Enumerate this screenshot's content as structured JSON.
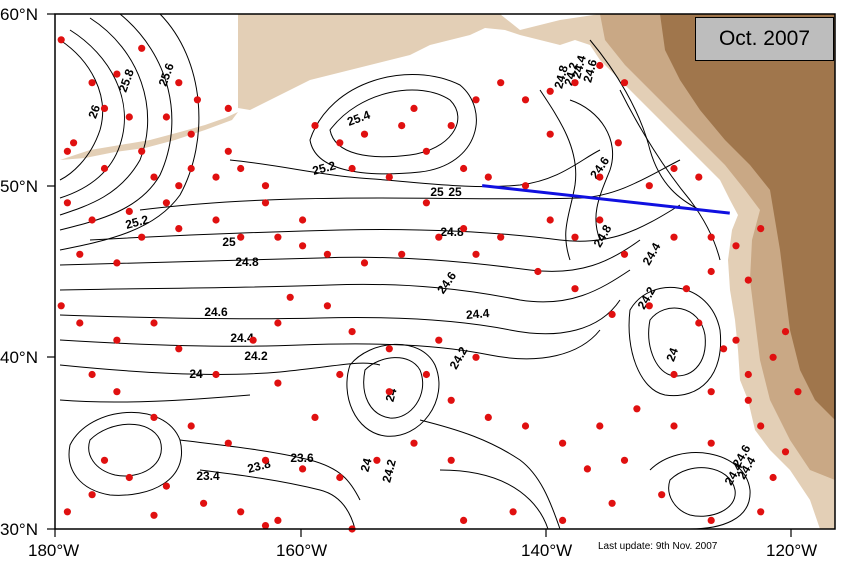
{
  "date_label": "Oct. 2007",
  "update_note": "Last update: 9th Nov. 2007",
  "colors": {
    "land_light": "#e3cfb6",
    "land_mid": "#c9a885",
    "land_dark": "#a0764c",
    "float": "#e01010",
    "section_line": "#1010e0",
    "contour": "#000000"
  },
  "axes": {
    "x_ticks": [
      "180°W",
      "160°W",
      "140°W",
      "120°W"
    ],
    "y_ticks": [
      "30°N",
      "40°N",
      "50°N",
      "60°N"
    ],
    "lon_range": [
      -180,
      -117
    ],
    "lat_range": [
      30,
      60
    ]
  },
  "contour_labels": [
    "26",
    "25.8",
    "25.6",
    "25.4",
    "25.2",
    "25.2",
    "25",
    "25",
    "24.8",
    "24.8",
    "24.8",
    "24.6",
    "24.6",
    "24.6",
    "24.4",
    "24.4",
    "24.4",
    "24.2",
    "24.2",
    "24.2",
    "24.2",
    "24",
    "24",
    "24",
    "24",
    "23.8",
    "23.6",
    "23.4",
    "24.2",
    "24.4",
    "24.6",
    "24.4",
    "24.4",
    "24.8",
    "25",
    "24.6"
  ],
  "section_line": {
    "from": [
      -145.5,
      50.0
    ],
    "to": [
      -125.5,
      48.4
    ]
  },
  "floats": [
    [
      -179.5,
      58.5
    ],
    [
      -175,
      56.5
    ],
    [
      -173,
      58
    ],
    [
      -170,
      56
    ],
    [
      -168.5,
      55
    ],
    [
      -166,
      54.5
    ],
    [
      -169,
      53
    ],
    [
      -176,
      54.5
    ],
    [
      -174,
      54
    ],
    [
      -178.5,
      52.5
    ],
    [
      -179,
      52
    ],
    [
      -176,
      51
    ],
    [
      -172,
      50.5
    ],
    [
      -170,
      50
    ],
    [
      -167,
      50.5
    ],
    [
      -165,
      51
    ],
    [
      -163,
      50
    ],
    [
      -171,
      49
    ],
    [
      -174,
      48.5
    ],
    [
      -177,
      48
    ],
    [
      -179,
      49
    ],
    [
      -178,
      46
    ],
    [
      -175,
      45.5
    ],
    [
      -173,
      47
    ],
    [
      -170,
      47.5
    ],
    [
      -167,
      48
    ],
    [
      -165,
      47
    ],
    [
      -162,
      47
    ],
    [
      -160,
      46.5
    ],
    [
      -158,
      46
    ],
    [
      -155,
      45.5
    ],
    [
      -152,
      46
    ],
    [
      -149,
      47
    ],
    [
      -147,
      47.5
    ],
    [
      -146,
      46
    ],
    [
      -150,
      49
    ],
    [
      -153,
      50.5
    ],
    [
      -156,
      51
    ],
    [
      -157,
      52.5
    ],
    [
      -159,
      53.5
    ],
    [
      -155,
      53
    ],
    [
      -151,
      54.5
    ],
    [
      -148,
      53.5
    ],
    [
      -146,
      55
    ],
    [
      -144,
      56
    ],
    [
      -142,
      55
    ],
    [
      -140,
      55.5
    ],
    [
      -138,
      56
    ],
    [
      -136,
      57
    ],
    [
      -134,
      56
    ],
    [
      -134.5,
      52.5
    ],
    [
      -136,
      50.5
    ],
    [
      -132,
      50
    ],
    [
      -130,
      51
    ],
    [
      -128,
      50.5
    ],
    [
      -140,
      53
    ],
    [
      -142,
      50
    ],
    [
      -144,
      47
    ],
    [
      -141,
      45
    ],
    [
      -138,
      44
    ],
    [
      -135,
      42.5
    ],
    [
      -132,
      43
    ],
    [
      -129,
      44
    ],
    [
      -127,
      45
    ],
    [
      -128,
      42
    ],
    [
      -126,
      40.5
    ],
    [
      -124,
      39
    ],
    [
      -125,
      41
    ],
    [
      -127,
      38
    ],
    [
      -130,
      39
    ],
    [
      -133,
      37
    ],
    [
      -136,
      36
    ],
    [
      -139,
      35
    ],
    [
      -142,
      36
    ],
    [
      -145,
      36.5
    ],
    [
      -148,
      37.5
    ],
    [
      -150,
      39
    ],
    [
      -153,
      40.5
    ],
    [
      -156,
      41.5
    ],
    [
      -158,
      43
    ],
    [
      -161,
      43.5
    ],
    [
      -162,
      42
    ],
    [
      -164,
      41
    ],
    [
      -167,
      39
    ],
    [
      -170,
      40.5
    ],
    [
      -172,
      42
    ],
    [
      -175,
      41
    ],
    [
      -178,
      42
    ],
    [
      -179.5,
      43
    ],
    [
      -177,
      39
    ],
    [
      -175,
      38
    ],
    [
      -172,
      36.5
    ],
    [
      -169,
      36
    ],
    [
      -166,
      35
    ],
    [
      -163,
      34
    ],
    [
      -160,
      33.5
    ],
    [
      -157,
      33
    ],
    [
      -154,
      34
    ],
    [
      -151,
      35
    ],
    [
      -148,
      34
    ],
    [
      -176,
      34
    ],
    [
      -174,
      33
    ],
    [
      -171,
      32.5
    ],
    [
      -168,
      31.5
    ],
    [
      -165,
      31
    ],
    [
      -162,
      30.5
    ],
    [
      -179,
      31
    ],
    [
      -177,
      32
    ],
    [
      -159,
      36.5
    ],
    [
      -162,
      38.5
    ],
    [
      -157,
      39
    ],
    [
      -153,
      38
    ],
    [
      -149,
      41
    ],
    [
      -146,
      40
    ],
    [
      -143,
      31
    ],
    [
      -139,
      30.5
    ],
    [
      -135,
      31.5
    ],
    [
      -131,
      32
    ],
    [
      -127,
      30.5
    ],
    [
      -123,
      31
    ],
    [
      -122,
      33
    ],
    [
      -121,
      34.5
    ],
    [
      -123,
      36
    ],
    [
      -124,
      37.5
    ],
    [
      -127,
      35
    ],
    [
      -130,
      36
    ],
    [
      -134,
      34
    ],
    [
      -137,
      33.5
    ],
    [
      -147,
      30.5
    ],
    [
      -156,
      30
    ],
    [
      -163,
      30.2
    ],
    [
      -172,
      30.8
    ],
    [
      -125,
      46.5
    ],
    [
      -127,
      47
    ],
    [
      -123,
      47.5
    ],
    [
      -124,
      44.5
    ],
    [
      -122,
      40
    ],
    [
      -121,
      41.5
    ],
    [
      -120,
      38
    ],
    [
      -130,
      47
    ],
    [
      -134,
      46
    ],
    [
      -136,
      48
    ],
    [
      -138,
      47
    ],
    [
      -140,
      48
    ],
    [
      -145,
      50.5
    ],
    [
      -147,
      51
    ],
    [
      -150,
      52
    ],
    [
      -152,
      53.5
    ],
    [
      -160,
      48
    ],
    [
      -163,
      49
    ],
    [
      -166,
      52
    ],
    [
      -169,
      51
    ],
    [
      -171,
      54
    ],
    [
      -173,
      52
    ],
    [
      -177,
      56
    ]
  ]
}
